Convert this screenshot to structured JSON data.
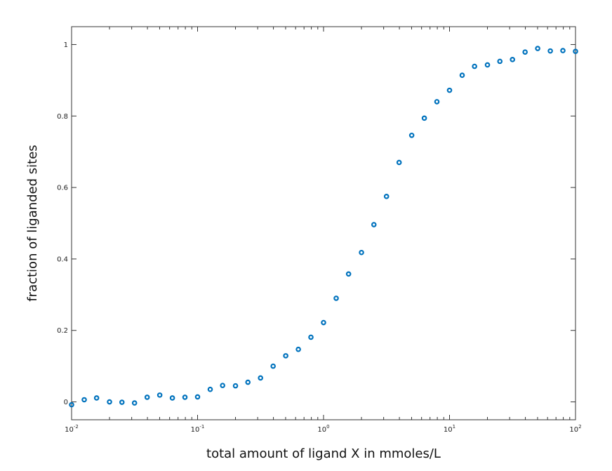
{
  "chart_data": {
    "type": "scatter",
    "title": "",
    "xlabel": "total amount of ligand X in mmoles/L",
    "ylabel": "fraction of liganded sites",
    "xscale": "log",
    "xlim": [
      0.01,
      100
    ],
    "ylim": [
      -0.05,
      1.05
    ],
    "grid": false,
    "marker_color": "#0072bd",
    "x_ticks": [
      {
        "value": 0.01,
        "base": "10",
        "exp": "-2"
      },
      {
        "value": 0.1,
        "base": "10",
        "exp": "-1"
      },
      {
        "value": 1,
        "base": "10",
        "exp": "0"
      },
      {
        "value": 10,
        "base": "10",
        "exp": "1"
      },
      {
        "value": 100,
        "base": "10",
        "exp": "2"
      }
    ],
    "y_ticks": [
      {
        "value": 0,
        "label": "0"
      },
      {
        "value": 0.2,
        "label": "0.2"
      },
      {
        "value": 0.4,
        "label": "0.4"
      },
      {
        "value": 0.6,
        "label": "0.6"
      },
      {
        "value": 0.8,
        "label": "0.8"
      },
      {
        "value": 1,
        "label": "1"
      }
    ],
    "series": [
      {
        "points": [
          [
            0.01,
            -0.008
          ],
          [
            0.0126,
            0.006
          ],
          [
            0.0158,
            0.011
          ],
          [
            0.02,
            0.0
          ],
          [
            0.0251,
            -0.001
          ],
          [
            0.0316,
            -0.003
          ],
          [
            0.0398,
            0.013
          ],
          [
            0.0501,
            0.019
          ],
          [
            0.0631,
            0.011
          ],
          [
            0.0794,
            0.013
          ],
          [
            0.1,
            0.014
          ],
          [
            0.126,
            0.035
          ],
          [
            0.158,
            0.046
          ],
          [
            0.2,
            0.045
          ],
          [
            0.251,
            0.055
          ],
          [
            0.316,
            0.067
          ],
          [
            0.398,
            0.1
          ],
          [
            0.501,
            0.129
          ],
          [
            0.631,
            0.147
          ],
          [
            0.794,
            0.181
          ],
          [
            1.0,
            0.222
          ],
          [
            1.26,
            0.29
          ],
          [
            1.58,
            0.358
          ],
          [
            2.0,
            0.418
          ],
          [
            2.51,
            0.496
          ],
          [
            3.16,
            0.575
          ],
          [
            3.98,
            0.67
          ],
          [
            5.01,
            0.746
          ],
          [
            6.31,
            0.794
          ],
          [
            7.94,
            0.84
          ],
          [
            10.0,
            0.872
          ],
          [
            12.6,
            0.914
          ],
          [
            15.8,
            0.939
          ],
          [
            20.0,
            0.943
          ],
          [
            25.1,
            0.953
          ],
          [
            31.6,
            0.958
          ],
          [
            39.8,
            0.979
          ],
          [
            50.1,
            0.989
          ],
          [
            63.1,
            0.982
          ],
          [
            79.4,
            0.983
          ],
          [
            100.0,
            0.981
          ]
        ]
      }
    ]
  }
}
